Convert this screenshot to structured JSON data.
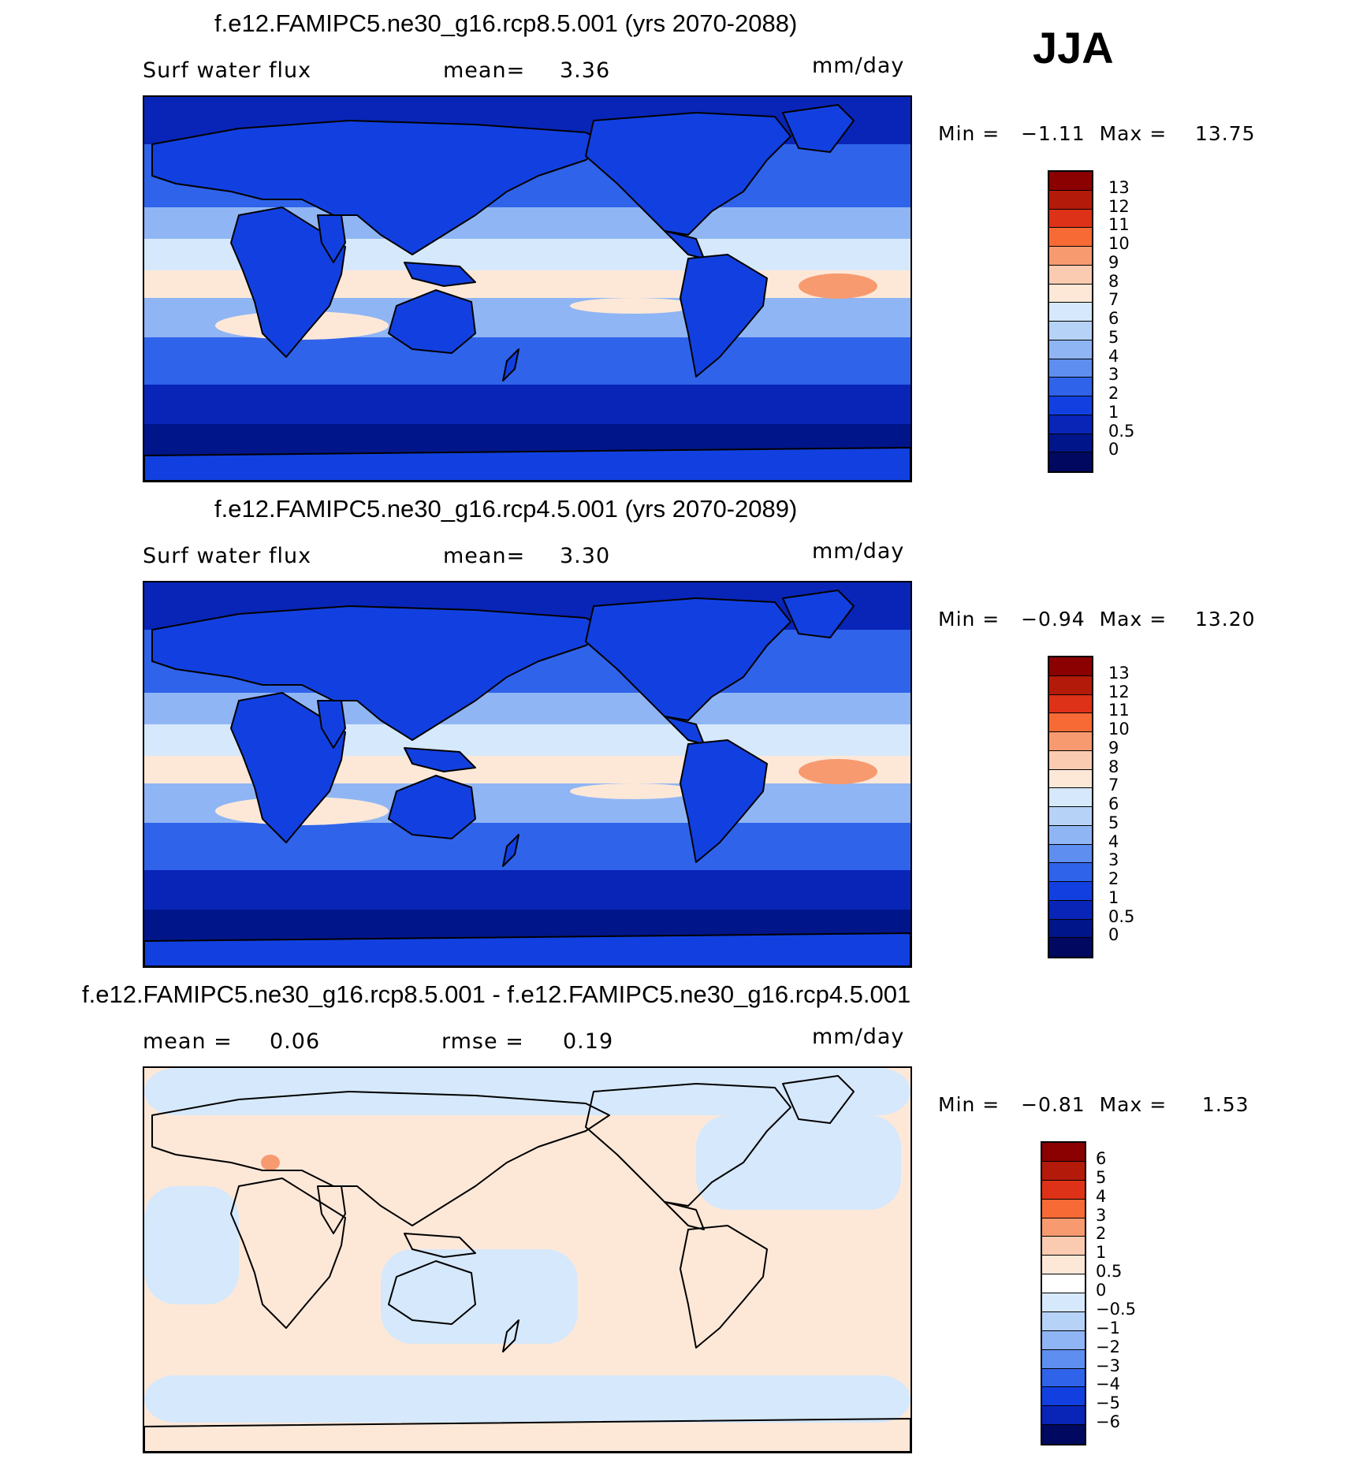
{
  "season": "JJA",
  "panels": [
    {
      "title": "f.e12.FAMIPC5.ne30_g16.rcp8.5.001 (yrs 2070-2088)",
      "left_label": "Surf water flux",
      "center_label": "mean=",
      "center_value": "3.36",
      "units": "mm/day",
      "minmax": "Min =   −1.11  Max =    13.75",
      "legend_levels": [
        "13",
        "12",
        "11",
        "10",
        "9",
        "8",
        "7",
        "6",
        "5",
        "4",
        "3",
        "2",
        "1",
        "0.5",
        "0"
      ],
      "legend_colors": [
        "#8b0000",
        "#b41a0a",
        "#de3218",
        "#f76a35",
        "#f79a70",
        "#facbb1",
        "#fde8d8",
        "#d6e8fb",
        "#b6d2f7",
        "#8fb5f4",
        "#5e8ef0",
        "#2f63ea",
        "#1240e0",
        "#0825b8",
        "#001589",
        "#00095f"
      ]
    },
    {
      "title": "f.e12.FAMIPC5.ne30_g16.rcp4.5.001 (yrs 2070-2089)",
      "left_label": "Surf water flux",
      "center_label": "mean=",
      "center_value": "3.30",
      "units": "mm/day",
      "minmax": "Min =   −0.94  Max =    13.20",
      "legend_levels": [
        "13",
        "12",
        "11",
        "10",
        "9",
        "8",
        "7",
        "6",
        "5",
        "4",
        "3",
        "2",
        "1",
        "0.5",
        "0"
      ],
      "legend_colors": [
        "#8b0000",
        "#b41a0a",
        "#de3218",
        "#f76a35",
        "#f79a70",
        "#facbb1",
        "#fde8d8",
        "#d6e8fb",
        "#b6d2f7",
        "#8fb5f4",
        "#5e8ef0",
        "#2f63ea",
        "#1240e0",
        "#0825b8",
        "#001589",
        "#00095f"
      ]
    },
    {
      "title": "f.e12.FAMIPC5.ne30_g16.rcp8.5.001 - f.e12.FAMIPC5.ne30_g16.rcp4.5.001",
      "left_label": "mean =",
      "left_value": "0.06",
      "center_label": "rmse =",
      "center_value": "0.19",
      "units": "mm/day",
      "minmax": "Min =   −0.81  Max =     1.53",
      "legend_levels": [
        "6",
        "5",
        "4",
        "3",
        "2",
        "1",
        "0.5",
        "0",
        "−0.5",
        "−1",
        "−2",
        "−3",
        "−4",
        "−5",
        "−6"
      ],
      "legend_colors": [
        "#8b0000",
        "#b41a0a",
        "#de3218",
        "#f76a35",
        "#f79a70",
        "#facbb1",
        "#fde8d8",
        "#ffffff",
        "#d6e8fb",
        "#b6d2f7",
        "#8fb5f4",
        "#5e8ef0",
        "#2f63ea",
        "#1240e0",
        "#0825b8",
        "#00095f"
      ]
    }
  ],
  "map_colors": {
    "ocean_deep": "#001589",
    "ocean_dark": "#0825b8",
    "ocean_mid": "#2f63ea",
    "ocean_light": "#8fb5f4",
    "ocean_pale": "#d6e8fb",
    "warm_pale": "#fde8d8",
    "warm_mid": "#f79a70",
    "land": "#1240e0",
    "coast": "#000000",
    "diff_bg": "#fde8d8",
    "diff_cool": "#d6e8fb"
  }
}
